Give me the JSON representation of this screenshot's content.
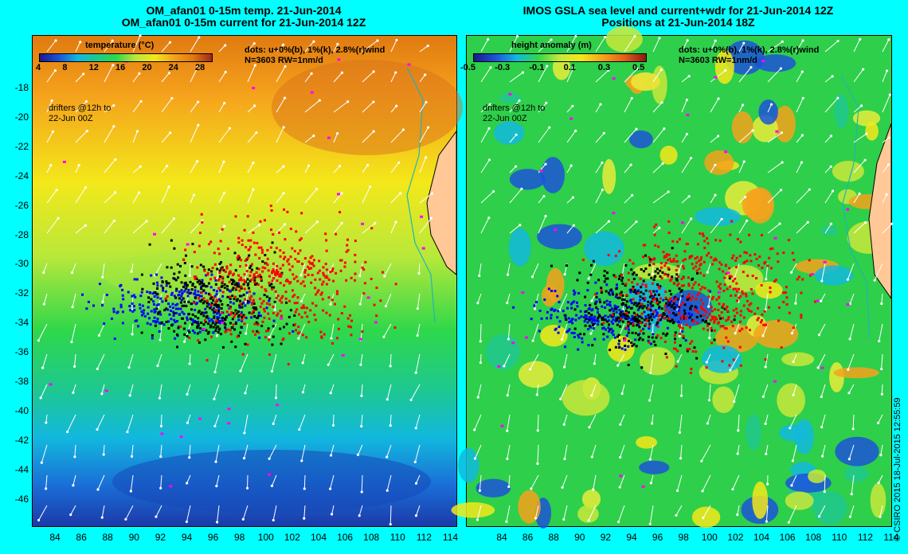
{
  "left": {
    "title_line1": "OM_afan01 0-15m temp. 21-Jun-2014",
    "title_line2": "OM_afan01 0-15m current for 21-Jun-2014 12Z",
    "colorbar_title": "temperature (°C)",
    "colorbar_ticks": [
      "4",
      "8",
      "12",
      "16",
      "20",
      "24",
      "28"
    ],
    "dots_line1": "dots: u+0%(b), 1%(k), 2.8%(r)wind",
    "dots_line2": "N=3603 RW=1nm/d",
    "drifters_line1": "drifters @12h to",
    "drifters_line2": "22-Jun 00Z"
  },
  "right": {
    "title_line1": "IMOS GSLA sea level and current+wdr for 21-Jun-2014 12Z",
    "title_line2": "Positions at 21-Jun-2014 18Z",
    "colorbar_title": "height anomaly (m)",
    "colorbar_ticks": [
      "-0.5",
      "-0.3",
      "-0.1",
      "0.1",
      "0.3",
      "0.5"
    ],
    "dots_line1": "dots: u+0%(b), 1%(k), 2.8%(r)wind",
    "dots_line2": "N=3603 RW=1nm/d",
    "drifters_line1": "drifters @12h to",
    "drifters_line2": "22-Jun 00Z"
  },
  "y_ticks": [
    "-18",
    "-20",
    "-22",
    "-24",
    "-26",
    "-28",
    "-30",
    "-32",
    "-34",
    "-36",
    "-38",
    "-40",
    "-42",
    "-44",
    "-46"
  ],
  "x_ticks": [
    "84",
    "86",
    "88",
    "90",
    "92",
    "94",
    "96",
    "98",
    "100",
    "102",
    "104",
    "106",
    "108",
    "110",
    "112",
    "114"
  ],
  "credit": "© CSIRO 2015   18-Jul-2015 12:55:59",
  "colors": {
    "background": "#00ffff",
    "land": "#ffc896",
    "coast": "#1fb5b5",
    "arrows": "#ffffff",
    "dots_blue": "#0000ff",
    "dots_black": "#000000",
    "dots_red": "#ff0000",
    "drifters": "#ff00ff"
  }
}
